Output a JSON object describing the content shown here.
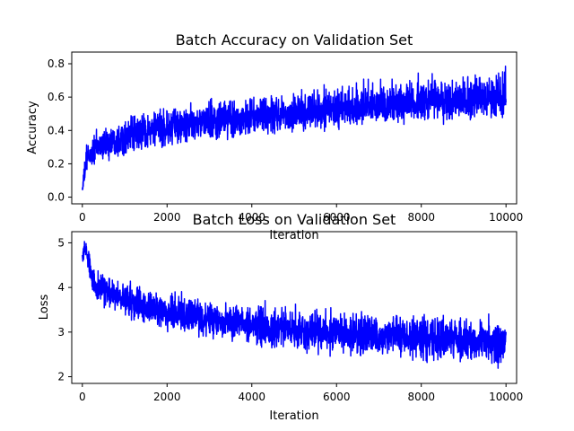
{
  "chart_data": [
    {
      "type": "line",
      "title": "Batch Accuracy on Validation Set",
      "xlabel": "Iteration",
      "ylabel": "Accuracy",
      "xlim": [
        -250,
        10250
      ],
      "ylim": [
        -0.04,
        0.87
      ],
      "xticks": [
        0,
        2000,
        4000,
        6000,
        8000,
        10000
      ],
      "yticks": [
        0.0,
        0.2,
        0.4,
        0.6,
        0.8
      ],
      "ytick_labels": [
        "0.0",
        "0.2",
        "0.4",
        "0.6",
        "0.8"
      ],
      "grid": false,
      "series": [
        {
          "color": "#0000ff",
          "x_range": [
            0,
            10000
          ],
          "points": 10000,
          "trend_mean": {
            "x": [
              0,
              100,
              300,
              700,
              1500,
              3000,
              5000,
              7000,
              10000
            ],
            "y": [
              0.05,
              0.22,
              0.29,
              0.34,
              0.39,
              0.45,
              0.5,
              0.54,
              0.59
            ]
          },
          "trend_low": {
            "x": [
              0,
              100,
              300,
              700,
              1500,
              3000,
              5000,
              7000,
              10000
            ],
            "y": [
              0.0,
              0.12,
              0.17,
              0.2,
              0.25,
              0.3,
              0.36,
              0.4,
              0.44
            ]
          },
          "trend_high": {
            "x": [
              0,
              100,
              300,
              700,
              1500,
              3000,
              5000,
              7000,
              10000
            ],
            "y": [
              0.1,
              0.36,
              0.42,
              0.48,
              0.55,
              0.62,
              0.68,
              0.75,
              0.81
            ]
          }
        }
      ]
    },
    {
      "type": "line",
      "title": "Batch Loss on Validation Set",
      "xlabel": "Iteration",
      "ylabel": "Loss",
      "xlim": [
        -250,
        10250
      ],
      "ylim": [
        1.85,
        5.25
      ],
      "xticks": [
        0,
        2000,
        4000,
        6000,
        8000,
        10000
      ],
      "yticks": [
        2,
        3,
        4,
        5
      ],
      "ytick_labels": [
        "2",
        "3",
        "4",
        "5"
      ],
      "grid": false,
      "series": [
        {
          "color": "#0000ff",
          "x_range": [
            0,
            10000
          ],
          "points": 10000,
          "trend_mean": {
            "x": [
              0,
              50,
              300,
              1000,
              2000,
              4000,
              6000,
              8000,
              10000
            ],
            "y": [
              4.65,
              4.9,
              4.1,
              3.7,
              3.4,
              3.15,
              2.95,
              2.85,
              2.75
            ]
          },
          "trend_low": {
            "x": [
              0,
              50,
              300,
              1000,
              2000,
              4000,
              6000,
              8000,
              10000
            ],
            "y": [
              4.55,
              4.6,
              3.6,
              3.2,
              2.9,
              2.6,
              2.35,
              2.2,
              2.1
            ]
          },
          "trend_high": {
            "x": [
              0,
              50,
              300,
              1000,
              2000,
              4000,
              6000,
              8000,
              10000
            ],
            "y": [
              4.75,
              5.12,
              4.55,
              4.3,
              4.0,
              3.75,
              3.6,
              3.5,
              3.45
            ]
          }
        }
      ]
    }
  ]
}
